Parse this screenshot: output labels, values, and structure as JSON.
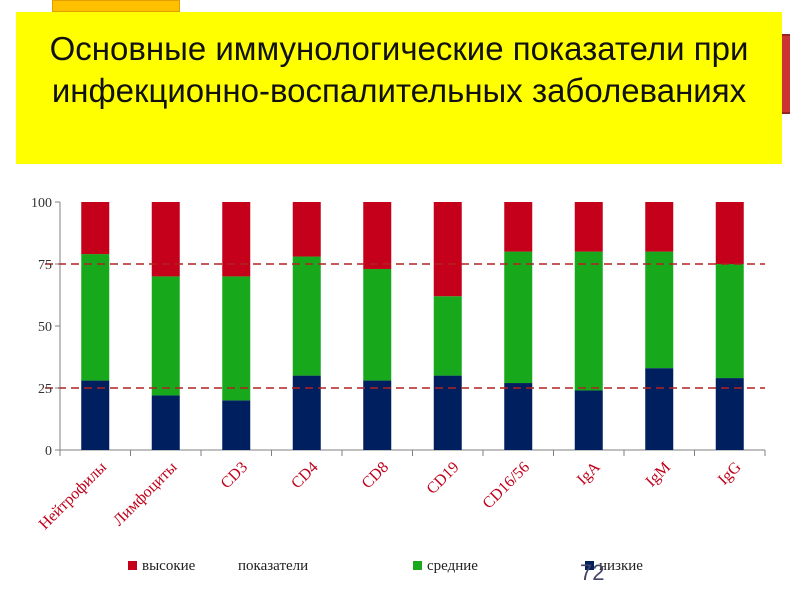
{
  "slide": {
    "title": "Основные иммунологические показатели при инфекционно-воспалительных заболеваниях",
    "page_number": "72"
  },
  "colors": {
    "title_background": "#ffff00",
    "low": "#001f5f",
    "mid": "#17a81c",
    "high": "#c4001a",
    "reference_line": "#b22222"
  },
  "chart_data": {
    "type": "bar",
    "stacked": true,
    "categories": [
      "Нейтрофилы",
      "Лимфоциты",
      "CD3",
      "CD4",
      "CD8",
      "CD19",
      "CD16/56",
      "IgA",
      "IgM",
      "IgG"
    ],
    "series": [
      {
        "name": "низкие",
        "key": "low",
        "values": [
          28,
          22,
          20,
          30,
          28,
          30,
          27,
          24,
          33,
          29
        ]
      },
      {
        "name": "средние",
        "key": "mid",
        "values": [
          51,
          48,
          50,
          48,
          45,
          32,
          53,
          56,
          47,
          46
        ]
      },
      {
        "name": "высокие",
        "key": "high",
        "values": [
          21,
          30,
          30,
          22,
          27,
          38,
          20,
          20,
          20,
          25
        ]
      }
    ],
    "yticks": [
      0,
      25,
      50,
      75,
      100
    ],
    "ylim": [
      0,
      100
    ],
    "reference_lines": [
      25,
      75
    ],
    "legend": {
      "position": "bottom",
      "items": [
        "высокие",
        "показатели",
        "средние",
        "низкие"
      ]
    }
  }
}
